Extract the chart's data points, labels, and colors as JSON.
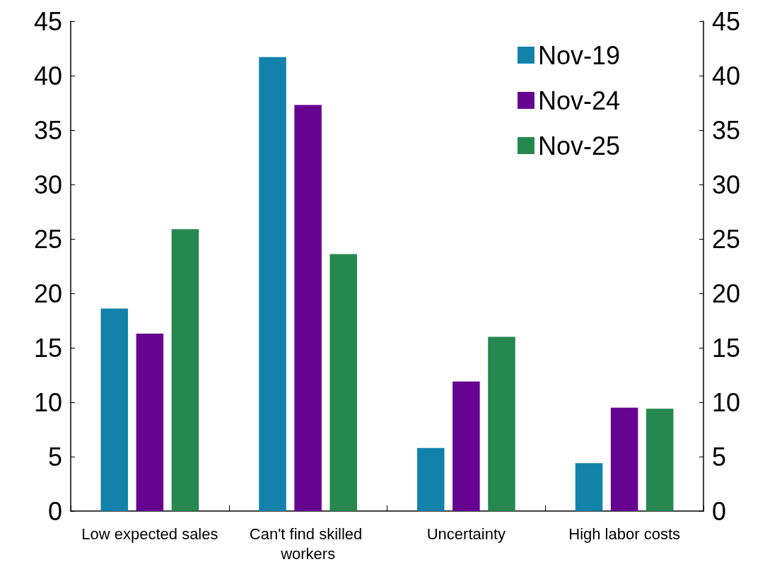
{
  "chart_data": {
    "type": "bar",
    "categories": [
      "Low expected sales",
      "Can't find skilled workers",
      "Uncertainty",
      "High labor costs"
    ],
    "series": [
      {
        "name": "Nov-19",
        "color": "#1282aa",
        "values": [
          18.6,
          41.7,
          5.8,
          4.4
        ]
      },
      {
        "name": "Nov-24",
        "color": "#660391",
        "values": [
          16.3,
          37.3,
          11.9,
          9.5
        ]
      },
      {
        "name": "Nov-25",
        "color": "#24884f",
        "values": [
          25.9,
          23.6,
          16.0,
          9.4
        ]
      }
    ],
    "ylim": [
      0,
      45
    ],
    "yticks": [
      0,
      5,
      10,
      15,
      20,
      25,
      30,
      35,
      40,
      45
    ],
    "y2lim": [
      0,
      45
    ],
    "y2ticks": [
      0,
      5,
      10,
      15,
      20,
      25,
      30,
      35,
      40,
      45
    ],
    "grid": false,
    "legend": "top right"
  }
}
